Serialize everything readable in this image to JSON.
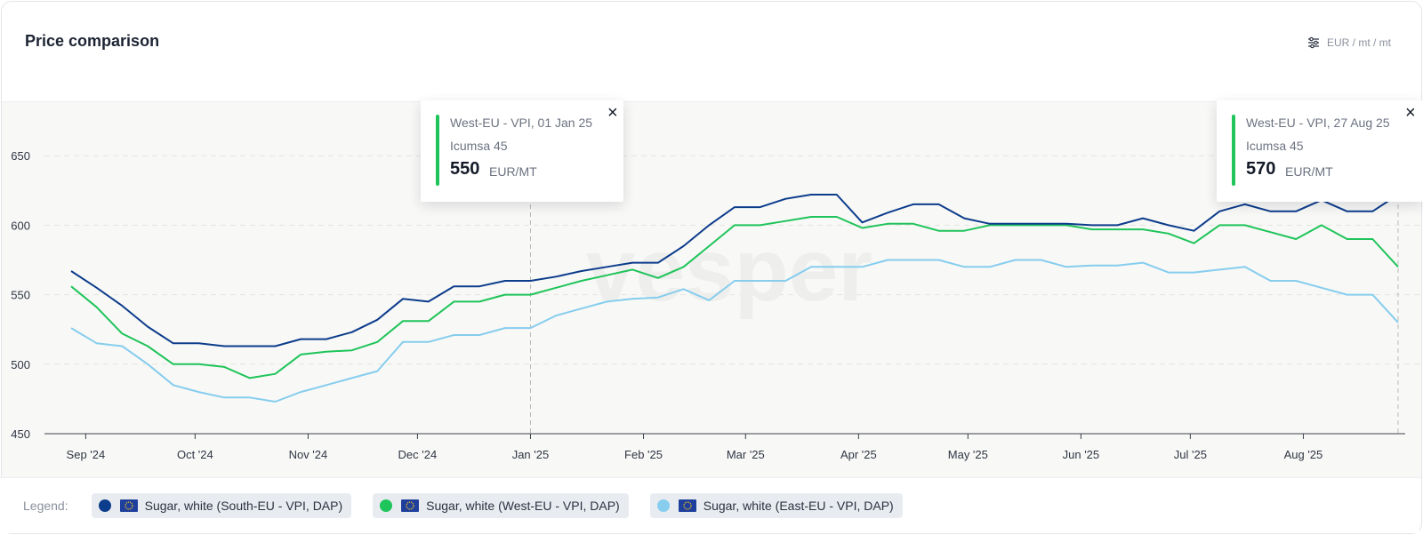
{
  "header": {
    "title": "Price comparison",
    "unit_label": "EUR / mt / mt"
  },
  "legend": {
    "label": "Legend:",
    "items": [
      {
        "label": "Sugar, white (South-EU - VPI, DAP)",
        "color": "#0c3c8c"
      },
      {
        "label": "Sugar, white (West-EU - VPI, DAP)",
        "color": "#1fc45a"
      },
      {
        "label": "Sugar, white (East-EU - VPI, DAP)",
        "color": "#86cdee"
      }
    ]
  },
  "tooltips": [
    {
      "header": "West-EU - VPI, 01 Jan 25",
      "grade": "Icumsa 45",
      "value": "550",
      "unit": "EUR/MT",
      "color": "#1fc45a",
      "close": "×"
    },
    {
      "header": "West-EU - VPI, 27 Aug 25",
      "grade": "Icumsa 45",
      "value": "570",
      "unit": "EUR/MT",
      "color": "#1fc45a",
      "close": "×"
    }
  ],
  "watermark": "vesper",
  "chart_data": {
    "type": "line",
    "title": "Price comparison",
    "xlabel": "",
    "ylabel": "",
    "ylim": [
      450,
      675
    ],
    "yticks": [
      450,
      500,
      550,
      600,
      650
    ],
    "xticks": [
      "Sep '24",
      "Oct '24",
      "Nov '24",
      "Dec '24",
      "Jan '25",
      "Feb '25",
      "Mar '25",
      "Apr '25",
      "May '25",
      "Jun '25",
      "Jul '25",
      "Aug '25"
    ],
    "x": [
      "2024-08-28",
      "2024-09-04",
      "2024-09-11",
      "2024-09-18",
      "2024-09-25",
      "2024-10-02",
      "2024-10-09",
      "2024-10-16",
      "2024-10-23",
      "2024-10-30",
      "2024-11-06",
      "2024-11-13",
      "2024-11-20",
      "2024-11-27",
      "2024-12-04",
      "2024-12-11",
      "2024-12-18",
      "2024-12-25",
      "2025-01-01",
      "2025-01-08",
      "2025-01-15",
      "2025-01-22",
      "2025-01-29",
      "2025-02-05",
      "2025-02-12",
      "2025-02-19",
      "2025-02-26",
      "2025-03-05",
      "2025-03-12",
      "2025-03-19",
      "2025-03-26",
      "2025-04-02",
      "2025-04-09",
      "2025-04-16",
      "2025-04-23",
      "2025-04-30",
      "2025-05-07",
      "2025-05-14",
      "2025-05-21",
      "2025-05-28",
      "2025-06-04",
      "2025-06-11",
      "2025-06-18",
      "2025-06-25",
      "2025-07-02",
      "2025-07-09",
      "2025-07-16",
      "2025-07-23",
      "2025-07-30",
      "2025-08-06",
      "2025-08-13",
      "2025-08-20",
      "2025-08-27"
    ],
    "grid": true,
    "legend_position": "bottom",
    "series": [
      {
        "name": "Sugar, white (South-EU - VPI, DAP)",
        "color": "#0c3c8c",
        "values": [
          567,
          555,
          542,
          527,
          515,
          515,
          513,
          513,
          513,
          518,
          518,
          523,
          532,
          547,
          545,
          556,
          556,
          560,
          560,
          563,
          567,
          570,
          573,
          573,
          585,
          600,
          613,
          613,
          619,
          622,
          622,
          602,
          609,
          615,
          615,
          605,
          601,
          601,
          601,
          601,
          600,
          600,
          605,
          600,
          596,
          610,
          615,
          610,
          610,
          618,
          610,
          610,
          622
        ]
      },
      {
        "name": "Sugar, white (West-EU - VPI, DAP)",
        "color": "#1fc45a",
        "values": [
          556,
          541,
          522,
          513,
          500,
          500,
          498,
          490,
          493,
          507,
          509,
          510,
          516,
          531,
          531,
          545,
          545,
          550,
          550,
          555,
          560,
          564,
          568,
          562,
          570,
          585,
          600,
          600,
          603,
          606,
          606,
          598,
          601,
          601,
          596,
          596,
          600,
          600,
          600,
          600,
          597,
          597,
          597,
          594,
          587,
          600,
          600,
          595,
          590,
          600,
          590,
          590,
          570
        ]
      },
      {
        "name": "Sugar, white (East-EU - VPI, DAP)",
        "color": "#86cdee",
        "values": [
          526,
          515,
          513,
          500,
          485,
          480,
          476,
          476,
          473,
          480,
          485,
          490,
          495,
          516,
          516,
          521,
          521,
          526,
          526,
          535,
          540,
          545,
          547,
          548,
          554,
          546,
          560,
          560,
          560,
          570,
          570,
          570,
          575,
          575,
          575,
          570,
          570,
          575,
          575,
          570,
          571,
          571,
          573,
          566,
          566,
          568,
          570,
          560,
          560,
          555,
          550,
          550,
          530
        ]
      }
    ]
  }
}
